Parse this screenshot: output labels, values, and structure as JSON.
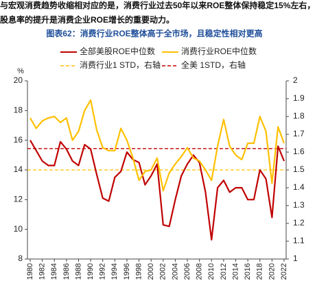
{
  "intro": [
    "与宏观消费趋势收缩相对应的是，消费行业过去50年以来ROE整体保持稳定15%左右，",
    "股息率的提升是消费企业ROE增长的重要动力。"
  ],
  "chart_data": {
    "type": "line",
    "title": "图表62：消费行业ROE整体高于全市场，且稳定性相对更高",
    "ylabel": "%",
    "x": [
      1980,
      1981,
      1982,
      1983,
      1984,
      1985,
      1986,
      1987,
      1988,
      1989,
      1990,
      1991,
      1992,
      1993,
      1994,
      1995,
      1996,
      1997,
      1998,
      1999,
      2000,
      2001,
      2002,
      2003,
      2004,
      2005,
      2006,
      2007,
      2008,
      2009,
      2010,
      2011,
      2012,
      2013,
      2014,
      2015,
      2016,
      2017,
      2018,
      2019,
      2020,
      2021,
      2022
    ],
    "xlim": [
      1980,
      2022
    ],
    "xticks": [
      1980,
      1982,
      1984,
      1986,
      1988,
      1990,
      1992,
      1994,
      1996,
      1998,
      2000,
      2002,
      2004,
      2006,
      2008,
      2010,
      2012,
      2014,
      2016,
      2018,
      2020,
      2022
    ],
    "ylim": [
      8,
      20
    ],
    "yticks": [
      8,
      10,
      12,
      14,
      16,
      18,
      20
    ],
    "y2lim": [
      1,
      2
    ],
    "y2ticks": [
      1,
      1.1,
      1.2,
      1.3,
      1.4,
      1.5,
      1.6,
      1.7,
      1.8,
      1.9,
      2
    ],
    "series": [
      {
        "name": "全部美股ROE中位数",
        "color": "#c00000",
        "values": [
          16.0,
          15.3,
          14.6,
          14.3,
          14.3,
          15.9,
          15.4,
          14.6,
          14.3,
          15.7,
          15.4,
          13.7,
          12.1,
          11.9,
          13.5,
          13.9,
          15.2,
          14.7,
          14.5,
          13.0,
          13.6,
          14.4,
          10.3,
          10.2,
          12.0,
          13.6,
          14.4,
          15.0,
          14.5,
          12.5,
          9.3,
          12.8,
          13.3,
          12.5,
          12.8,
          12.8,
          12.0,
          12.0,
          14.0,
          13.4,
          10.8,
          15.6,
          14.6
        ]
      },
      {
        "name": "消费行业ROE中位数",
        "color": "#ffc000",
        "values": [
          17.5,
          16.8,
          17.3,
          17.5,
          17.6,
          17.2,
          17.5,
          16.0,
          16.6,
          18.0,
          18.7,
          16.7,
          15.5,
          15.3,
          15.3,
          16.8,
          16.0,
          14.8,
          13.3,
          13.9,
          14.0,
          14.8,
          12.6,
          13.8,
          14.4,
          14.9,
          15.5,
          14.8,
          14.6,
          14.0,
          13.3,
          15.6,
          17.4,
          15.6,
          15.0,
          14.7,
          15.8,
          15.8,
          17.6,
          16.6,
          13.1,
          16.9,
          15.8
        ]
      }
    ],
    "reference_lines": [
      {
        "name": "消费行业1 STD，右轴",
        "color": "#ffc000",
        "axis": "y2",
        "value": 1.5
      },
      {
        "name": "全美 1STD，右轴",
        "color": "#c00000",
        "axis": "y2",
        "value": 1.62
      }
    ]
  }
}
